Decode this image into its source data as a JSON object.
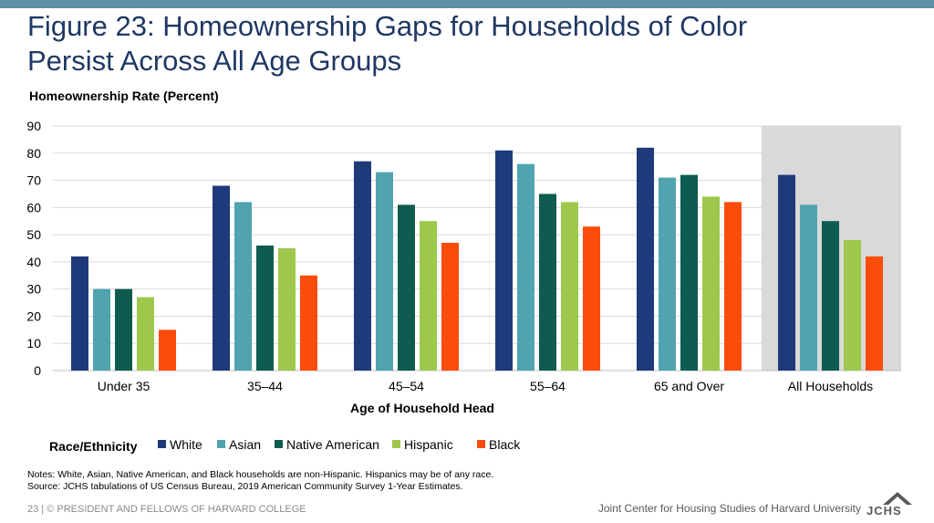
{
  "title_line1": "Figure 23: Homeownership Gaps for Households of Color",
  "title_line2": "Persist Across All Age Groups",
  "notes_line1": "Notes: White, Asian, Native American, and Black households are non-Hispanic. Hispanics may be of any race.",
  "notes_line2": "Source: JCHS tabulations of US Census Bureau, 2019 American Community Survey 1-Year Estimates.",
  "footer_left": "23 | © PRESIDENT AND FELLOWS OF HARVARD COLLEGE",
  "footer_right": "Joint Center for Housing Studies of Harvard University",
  "logo_text": "JCHS",
  "colors": {
    "White": "#1f3a7a",
    "Asian": "#4fa4b0",
    "Native American": "#0e5c4f",
    "Hispanic": "#9dc84b",
    "Black": "#fc4c0c",
    "highlight": "#d9d9d9",
    "gridline": "#d9d9d9"
  },
  "chart_data": {
    "type": "bar",
    "ylabel": "Homeownership Rate (Percent)",
    "xlabel": "Age of Household Head",
    "ylim": [
      0,
      90
    ],
    "yticks": [
      0,
      10,
      20,
      30,
      40,
      50,
      60,
      70,
      80,
      90
    ],
    "grid": true,
    "legend_title": "Race/Ethnicity",
    "legend_position": "bottom",
    "highlighted_category": "All Households",
    "categories": [
      "Under 35",
      "35–44",
      "45–54",
      "55–64",
      "65 and Over",
      "All Households"
    ],
    "series": [
      {
        "name": "White",
        "values": [
          42,
          68,
          77,
          81,
          82,
          72
        ]
      },
      {
        "name": "Asian",
        "values": [
          30,
          62,
          73,
          76,
          71,
          61
        ]
      },
      {
        "name": "Native American",
        "values": [
          30,
          46,
          61,
          65,
          72,
          55
        ]
      },
      {
        "name": "Hispanic",
        "values": [
          27,
          45,
          55,
          62,
          64,
          48
        ]
      },
      {
        "name": "Black",
        "values": [
          15,
          35,
          47,
          53,
          62,
          42
        ]
      }
    ]
  }
}
